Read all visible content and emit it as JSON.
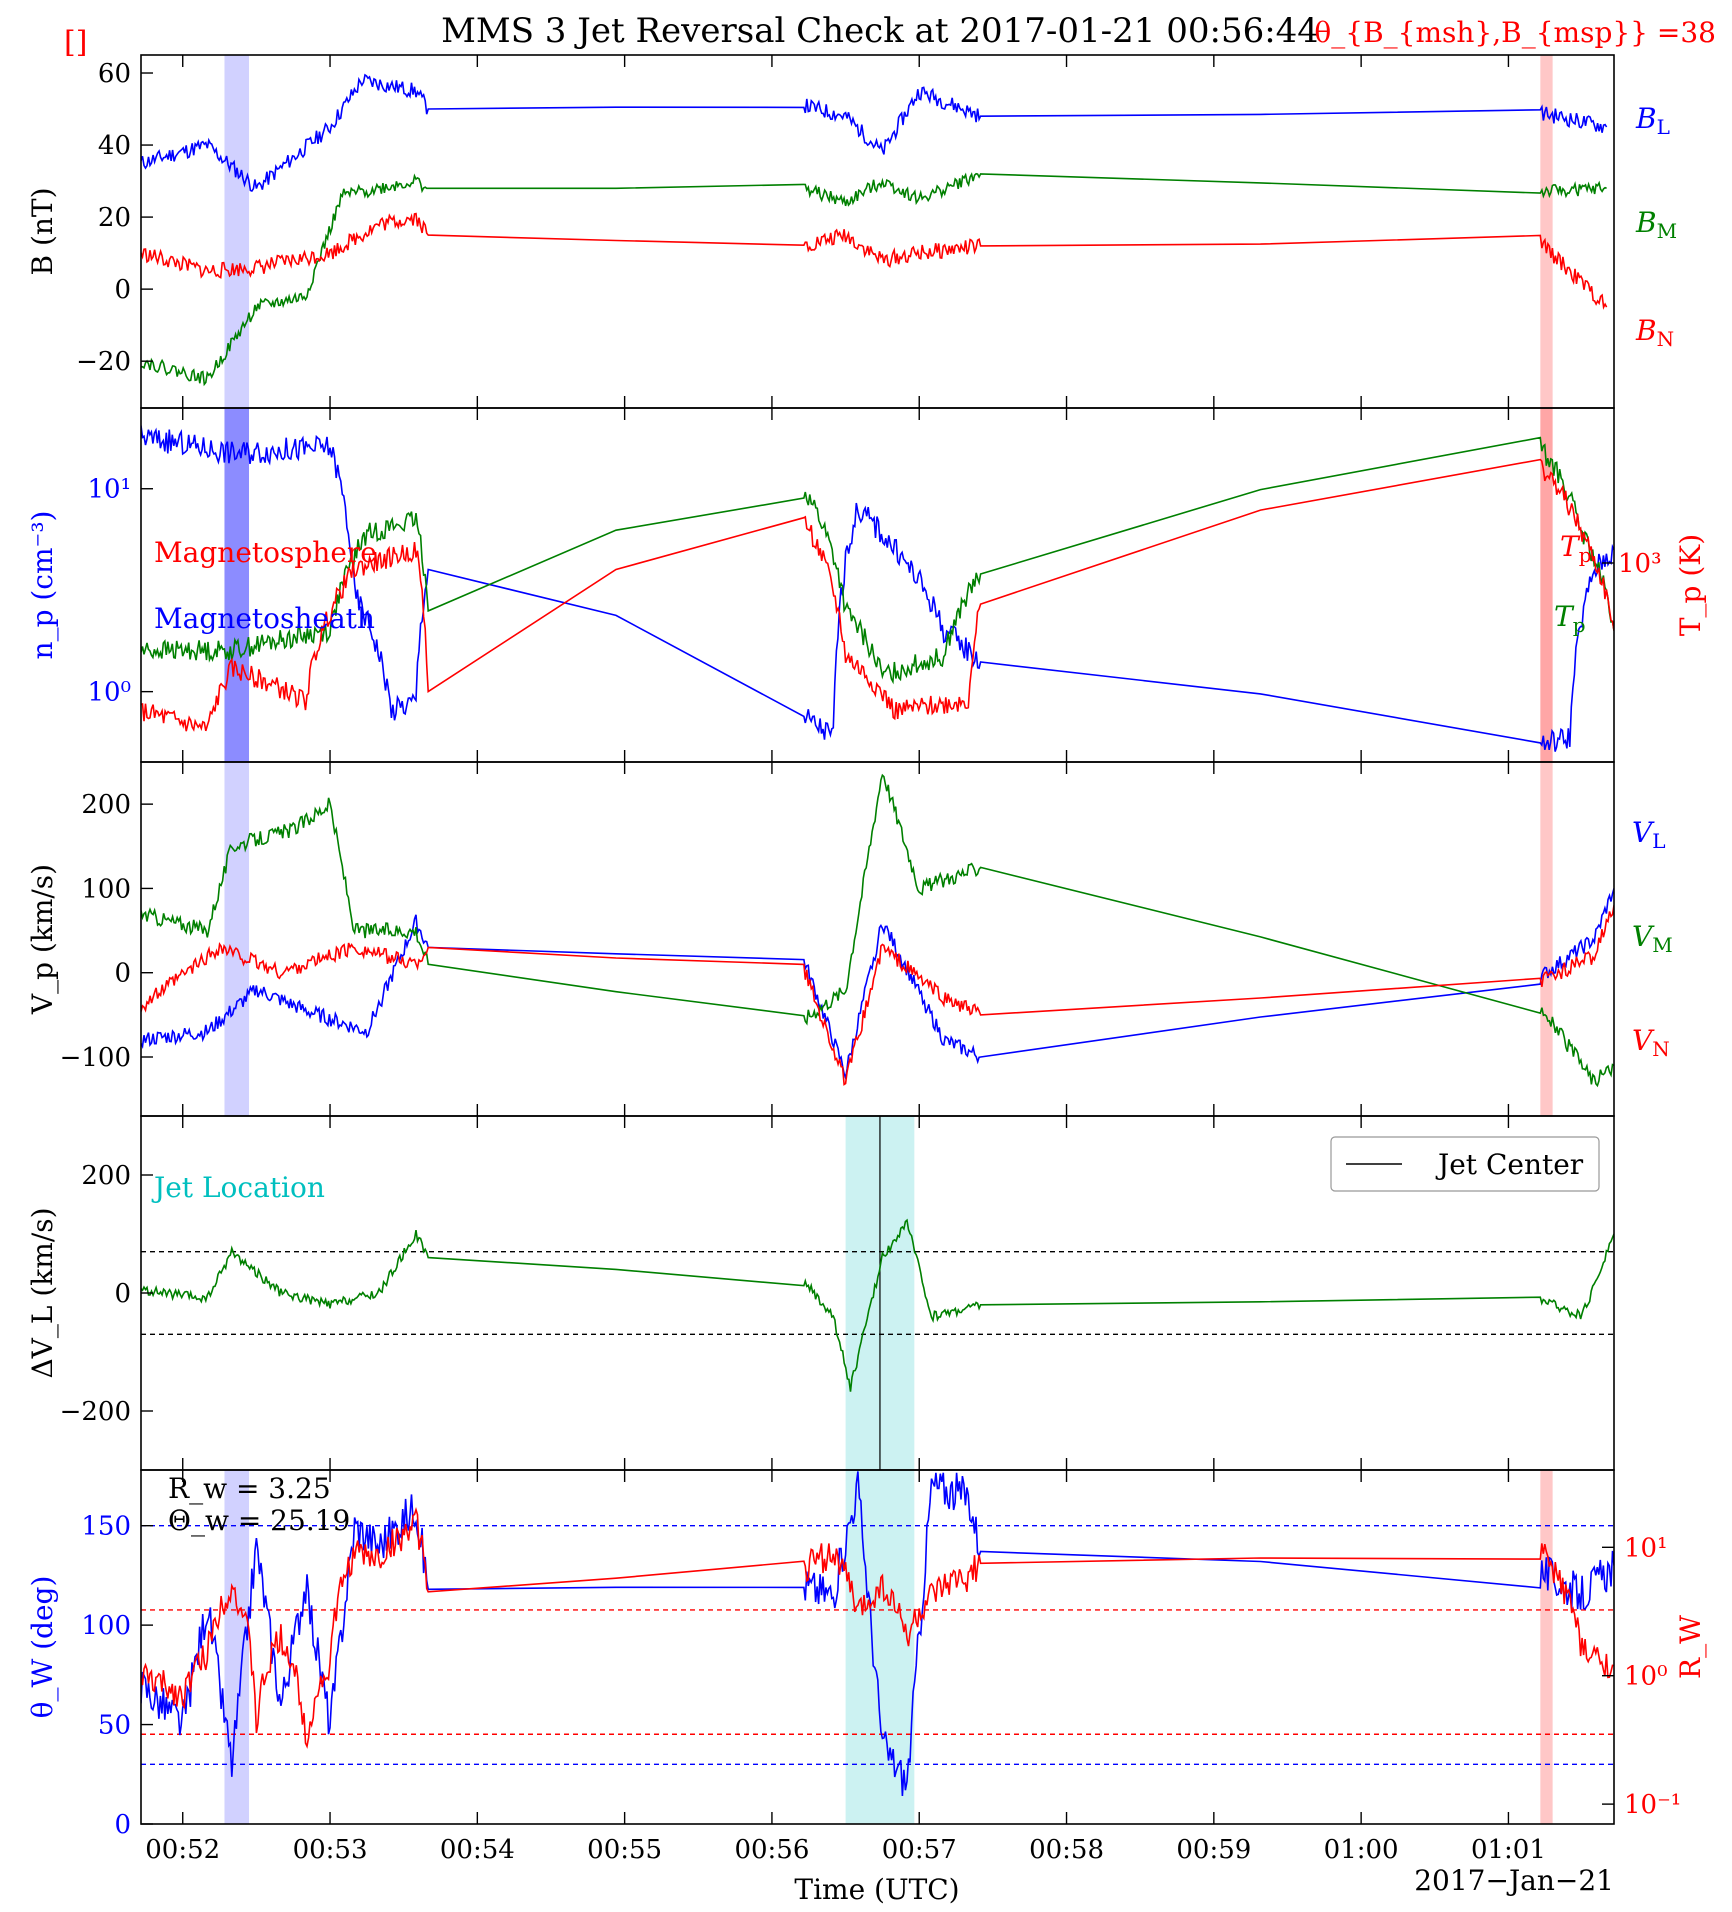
{
  "title": "MMS 3 Jet Reversal Check at 2017-01-21 00:56:44",
  "theta_annotation": "θ_{B_{msh},B_{msp}} =38",
  "corner_mark": "[]",
  "xlabel": "Time (UTC)",
  "date_label": "2017−Jan−21",
  "x_ticks": [
    "00:52",
    "00:53",
    "00:54",
    "00:55",
    "00:56",
    "00:57",
    "00:58",
    "00:59",
    "01:00",
    "01:01"
  ],
  "colors": {
    "blue": "#0000ff",
    "green": "#008000",
    "red": "#ff0000",
    "cyan": "#00bfbf",
    "black": "#000000"
  },
  "chart_data": [
    {
      "type": "line",
      "panel": "B",
      "ylabel": "B (nT)",
      "ylim": [
        -33,
        65
      ],
      "yticks": [
        "−20",
        "0",
        "20",
        "40",
        "60"
      ],
      "side_labels": [
        "B_L",
        "B_M",
        "B_N"
      ],
      "time_range": [
        "00:51:43",
        "01:01:43"
      ],
      "series": [
        {
          "name": "B_L",
          "color": "#0000ff",
          "x": [
            "00:51:43",
            "00:52:10",
            "00:52:30",
            "00:53:00",
            "00:53:13",
            "00:53:35",
            "00:53:40",
            "00:56:13",
            "00:56:30",
            "00:56:45",
            "00:57:00",
            "00:57:25",
            "01:01:13",
            "01:01:40"
          ],
          "y": [
            35,
            40,
            28,
            45,
            58,
            55,
            50,
            51,
            48,
            38,
            55,
            48,
            49,
            45
          ]
        },
        {
          "name": "B_M",
          "color": "#008000",
          "x": [
            "00:51:43",
            "00:52:10",
            "00:52:30",
            "00:52:50",
            "00:53:05",
            "00:53:35",
            "00:53:40",
            "00:56:13",
            "00:56:30",
            "00:56:45",
            "00:57:00",
            "00:57:25",
            "01:01:13",
            "01:01:40"
          ],
          "y": [
            -20,
            -25,
            -5,
            -2,
            26,
            30,
            28,
            28,
            24,
            30,
            25,
            32,
            27,
            28
          ]
        },
        {
          "name": "B_N",
          "color": "#ff0000",
          "x": [
            "00:51:43",
            "00:52:10",
            "00:52:30",
            "00:53:00",
            "00:53:20",
            "00:53:35",
            "00:53:40",
            "00:56:13",
            "00:56:30",
            "00:56:45",
            "00:57:00",
            "00:57:25",
            "01:01:13",
            "01:01:40"
          ],
          "y": [
            10,
            5,
            6,
            10,
            18,
            20,
            15,
            12,
            15,
            8,
            10,
            12,
            13,
            -5
          ]
        }
      ]
    },
    {
      "type": "line",
      "panel": "n_p / T_p",
      "ylabel": "n_p (cm^-3)",
      "ylabel_right": "T_p (K)",
      "yscale": "log",
      "ylim": [
        0.45,
        25
      ],
      "yticks": [
        "10^0",
        "10^1"
      ],
      "yticks_right": [
        "10^3"
      ],
      "annotations": [
        "Magnetosphere",
        "Magnetosheath"
      ],
      "side_labels": [
        "T_p",
        "T_p"
      ],
      "series": [
        {
          "name": "n_p",
          "color": "#0000ff",
          "x": [
            "00:51:43",
            "00:52:20",
            "00:53:00",
            "00:53:10",
            "00:53:25",
            "00:53:35",
            "00:53:40",
            "00:56:13",
            "00:56:25",
            "00:56:35",
            "00:56:50",
            "00:57:10",
            "00:57:25",
            "01:01:13",
            "01:01:25",
            "01:01:35",
            "01:01:43"
          ],
          "y": [
            18,
            15,
            16,
            3,
            0.8,
            0.9,
            4,
            0.75,
            0.6,
            8,
            5,
            2,
            1.4,
            0.55,
            0.6,
            4,
            5
          ]
        },
        {
          "color": "#008000",
          "x": [
            "00:51:43",
            "00:52:20",
            "00:53:00",
            "00:53:15",
            "00:53:35",
            "00:53:40",
            "00:56:13",
            "00:56:30",
            "00:56:45",
            "00:57:10",
            "00:57:25",
            "01:01:13",
            "01:01:30",
            "01:01:43"
          ],
          "y": [
            1.6,
            1.6,
            2.0,
            6,
            7,
            2.5,
            10,
            2.5,
            1.2,
            1.5,
            3.8,
            16,
            6,
            2
          ]
        },
        {
          "color": "#ff0000",
          "x": [
            "00:51:43",
            "00:52:10",
            "00:52:20",
            "00:52:50",
            "00:53:10",
            "00:53:35",
            "00:53:40",
            "00:56:13",
            "00:56:30",
            "00:56:50",
            "00:57:20",
            "00:57:25",
            "01:01:13",
            "01:01:30",
            "01:01:43"
          ],
          "y": [
            0.8,
            0.65,
            1.3,
            0.9,
            4,
            5,
            1.0,
            7,
            1.5,
            0.8,
            0.9,
            2.7,
            13,
            6,
            2
          ]
        }
      ]
    },
    {
      "type": "line",
      "panel": "V_p",
      "ylabel": "V_p (km/s)",
      "ylim": [
        -170,
        250
      ],
      "yticks": [
        "−100",
        "0",
        "100",
        "200"
      ],
      "side_labels": [
        "V_L",
        "V_M",
        "V_N"
      ],
      "series": [
        {
          "name": "V_L",
          "color": "#0000ff",
          "x": [
            "00:51:43",
            "00:52:10",
            "00:52:30",
            "00:52:50",
            "00:53:15",
            "00:53:35",
            "00:53:40",
            "00:56:13",
            "00:56:30",
            "00:56:45",
            "00:57:10",
            "00:57:25",
            "01:01:13",
            "01:01:35",
            "01:01:43"
          ],
          "y": [
            -80,
            -70,
            -20,
            -45,
            -70,
            60,
            30,
            15,
            -120,
            60,
            -80,
            -100,
            -5,
            40,
            100
          ]
        },
        {
          "name": "V_M",
          "color": "#008000",
          "x": [
            "00:51:43",
            "00:52:10",
            "00:52:20",
            "00:52:45",
            "00:53:00",
            "00:53:10",
            "00:53:35",
            "00:53:40",
            "00:56:13",
            "00:56:30",
            "00:56:45",
            "00:57:00",
            "00:57:25",
            "01:01:13",
            "01:01:35",
            "01:01:43"
          ],
          "y": [
            70,
            50,
            150,
            170,
            200,
            50,
            50,
            10,
            -55,
            -20,
            240,
            100,
            125,
            -40,
            -130,
            -110
          ]
        },
        {
          "name": "V_N",
          "color": "#ff0000",
          "x": [
            "00:51:43",
            "00:52:15",
            "00:52:40",
            "00:53:10",
            "00:53:35",
            "00:53:40",
            "00:56:13",
            "00:56:30",
            "00:56:45",
            "00:57:10",
            "00:57:25",
            "01:01:13",
            "01:01:35",
            "01:01:43"
          ],
          "y": [
            -40,
            30,
            0,
            30,
            10,
            30,
            5,
            -130,
            30,
            -30,
            -50,
            -10,
            20,
            80
          ]
        }
      ]
    },
    {
      "type": "line",
      "panel": "ΔV_L",
      "ylabel": "ΔV_L (km/s)",
      "ylim": [
        -300,
        300
      ],
      "yticks": [
        "−200",
        "0",
        "200"
      ],
      "annotations": [
        "Jet Location"
      ],
      "legend": {
        "label": "Jet Center",
        "placement": "top-right"
      },
      "jet_center": "00:56:44",
      "jet_region": [
        "00:56:30",
        "00:56:58"
      ],
      "threshold_lines": [
        70,
        -70
      ],
      "series": [
        {
          "color": "#008000",
          "x": [
            "00:51:43",
            "00:52:10",
            "00:52:20",
            "00:52:40",
            "00:53:00",
            "00:53:20",
            "00:53:35",
            "00:53:40",
            "00:56:13",
            "00:56:25",
            "00:56:32",
            "00:56:45",
            "00:56:55",
            "00:57:05",
            "00:57:25",
            "01:01:13",
            "01:01:30",
            "01:01:43"
          ],
          "y": [
            5,
            -10,
            70,
            0,
            -20,
            0,
            100,
            60,
            20,
            -40,
            -160,
            60,
            120,
            -40,
            -20,
            -10,
            -40,
            100
          ]
        }
      ]
    },
    {
      "type": "line",
      "panel": "θ_W / R_W",
      "ylabel": "θ_W (deg)",
      "ylabel_right": "R_W",
      "ylim": [
        0,
        178
      ],
      "yticks": [
        "0",
        "50",
        "100",
        "150"
      ],
      "yticks_right": [
        "10^-1",
        "10^0",
        "10^1"
      ],
      "ylim_right_log": [
        0.07,
        40
      ],
      "annotations": [
        "R_w = 3.25",
        "Θ_w = 25.19"
      ],
      "reference_lines_left": [
        150,
        30
      ],
      "reference_lines_right": [
        3.25,
        0.35
      ],
      "series": [
        {
          "color": "#0000ff",
          "x": [
            "00:51:43",
            "00:52:00",
            "00:52:10",
            "00:52:20",
            "00:52:30",
            "00:52:40",
            "00:52:50",
            "00:53:00",
            "00:53:10",
            "00:53:20",
            "00:53:35",
            "00:53:40",
            "00:56:13",
            "00:56:25",
            "00:56:35",
            "00:56:45",
            "00:56:55",
            "00:57:05",
            "00:57:20",
            "00:57:25",
            "01:01:13",
            "01:01:30",
            "01:01:43"
          ],
          "y": [
            70,
            50,
            110,
            30,
            140,
            60,
            120,
            50,
            150,
            140,
            160,
            118,
            120,
            115,
            170,
            40,
            20,
            170,
            165,
            137,
            127,
            115,
            130
          ]
        },
        {
          "color": "#ff0000",
          "x": [
            "00:51:43",
            "00:52:00",
            "00:52:10",
            "00:52:20",
            "00:52:30",
            "00:52:40",
            "00:52:50",
            "00:53:00",
            "00:53:10",
            "00:53:20",
            "00:53:35",
            "00:53:40",
            "00:56:13",
            "00:56:25",
            "00:56:35",
            "00:56:45",
            "00:56:55",
            "00:57:05",
            "00:57:20",
            "00:57:25",
            "01:01:13",
            "01:01:30",
            "01:01:43"
          ],
          "y": [
            1.0,
            0.7,
            1.5,
            5,
            0.4,
            2,
            0.3,
            1.2,
            9,
            8,
            15,
            4.5,
            7,
            9,
            3,
            5,
            2,
            4,
            6,
            7.5,
            9,
            1.5,
            1.2
          ]
        }
      ]
    }
  ],
  "shaded_regions": {
    "blue_band": [
      "00:52:17",
      "00:52:27"
    ],
    "red_band": [
      "01:01:13",
      "01:01:18"
    ],
    "cyan_band": [
      "00:56:30",
      "00:56:58"
    ]
  }
}
